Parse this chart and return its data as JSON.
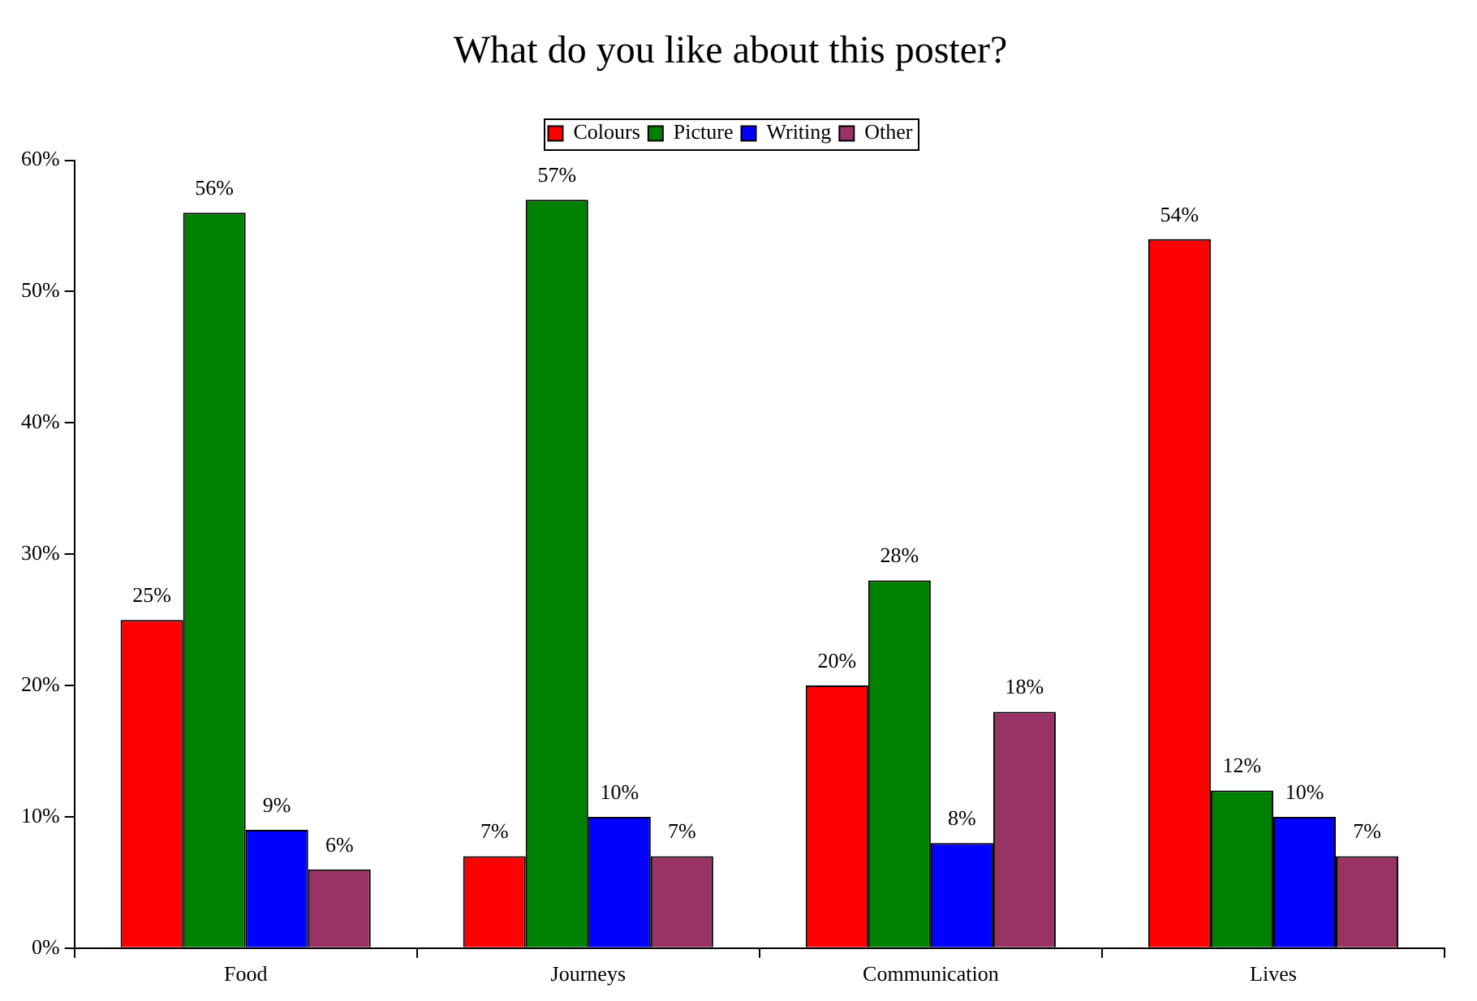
{
  "chart_data": {
    "type": "bar",
    "title": "What do you like about this poster?",
    "categories": [
      "Food",
      "Journeys",
      "Communication",
      "Lives"
    ],
    "series": [
      {
        "name": "Colours",
        "color": "#ff0000",
        "values": [
          25,
          7,
          20,
          54
        ],
        "value_labels": [
          "25%",
          "7%",
          "20%",
          "54%"
        ]
      },
      {
        "name": "Picture",
        "color": "#008000",
        "values": [
          56,
          57,
          28,
          12
        ],
        "value_labels": [
          "56%",
          "57%",
          "28%",
          "12%"
        ]
      },
      {
        "name": "Writing",
        "color": "#0000ff",
        "values": [
          9,
          10,
          8,
          10
        ],
        "value_labels": [
          "9%",
          "10%",
          "8%",
          "10%"
        ]
      },
      {
        "name": "Other",
        "color": "#993366",
        "values": [
          6,
          7,
          18,
          7
        ],
        "value_labels": [
          "6%",
          "7%",
          "18%",
          "7%"
        ]
      }
    ],
    "ylim": [
      0,
      60
    ],
    "yticks": [
      {
        "value": 0,
        "label": "0%"
      },
      {
        "value": 10,
        "label": "10%"
      },
      {
        "value": 20,
        "label": "20%"
      },
      {
        "value": 30,
        "label": "30%"
      },
      {
        "value": 40,
        "label": "40%"
      },
      {
        "value": 50,
        "label": "50%"
      },
      {
        "value": 60,
        "label": "60%"
      }
    ],
    "grid": false,
    "legend": "top"
  }
}
